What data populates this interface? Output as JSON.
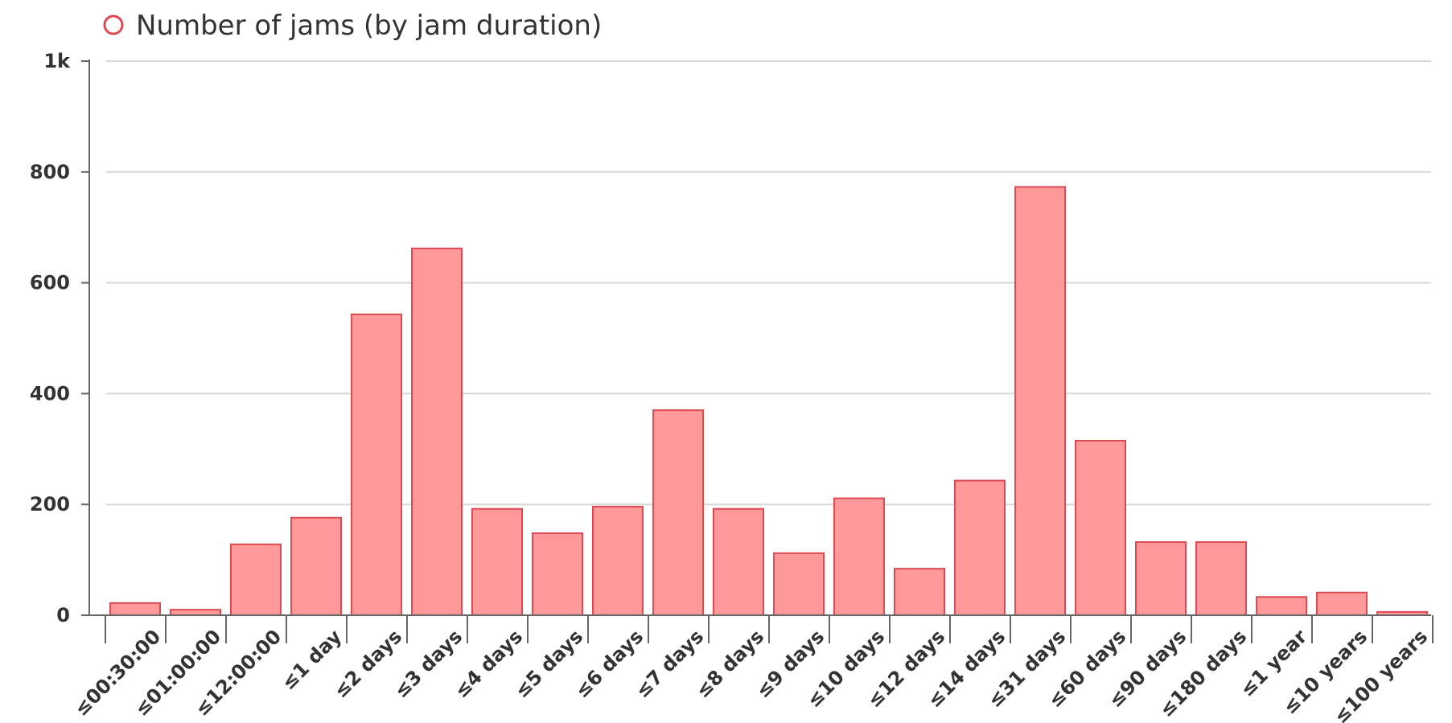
{
  "chart_data": {
    "type": "bar",
    "legend": {
      "label": "Number of jams (by jam duration)",
      "position": "top-left"
    },
    "colors": {
      "bar_fill": "#ff9899",
      "bar_stroke": "#dc4b53",
      "grid": "#d8d8d8",
      "axis": "#666666"
    },
    "categories": [
      "≤00:30:00",
      "≤01:00:00",
      "≤12:00:00",
      "≤1 day",
      "≤2 days",
      "≤3 days",
      "≤4 days",
      "≤5 days",
      "≤6 days",
      "≤7 days",
      "≤8 days",
      "≤9 days",
      "≤10 days",
      "≤12 days",
      "≤14 days",
      "≤31 days",
      "≤60 days",
      "≤90 days",
      "≤180 days",
      "≤1 year",
      "≤10 years",
      "≤100 years"
    ],
    "values": [
      22,
      10,
      128,
      176,
      543,
      662,
      192,
      148,
      196,
      370,
      192,
      112,
      211,
      84,
      243,
      773,
      315,
      132,
      132,
      33,
      41,
      6
    ],
    "y_ticks": [
      {
        "value": 0,
        "label": "0"
      },
      {
        "value": 200,
        "label": "200"
      },
      {
        "value": 400,
        "label": "400"
      },
      {
        "value": 600,
        "label": "600"
      },
      {
        "value": 800,
        "label": "800"
      },
      {
        "value": 1000,
        "label": "1k"
      }
    ],
    "ylim": [
      0,
      1000
    ],
    "grid": true
  }
}
